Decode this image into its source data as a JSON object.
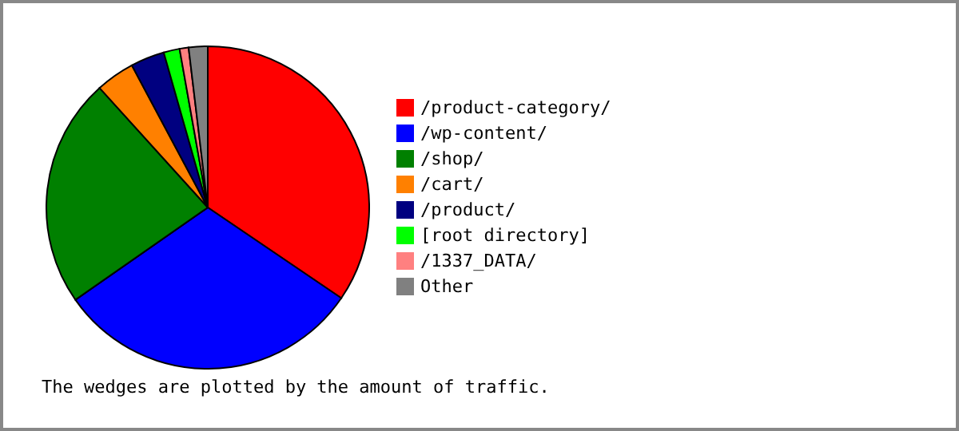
{
  "chart_data": {
    "type": "pie",
    "categories": [
      "/product-category/",
      "/wp-content/",
      "/shop/",
      "/cart/",
      "/product/",
      "[root directory]",
      "/1337_DATA/",
      "Other"
    ],
    "values": [
      34.5,
      30.8,
      23,
      3.9,
      3.4,
      1.6,
      0.9,
      1.9
    ],
    "colors": [
      "#ff0000",
      "#0000ff",
      "#008000",
      "#ff8000",
      "#000080",
      "#00ff00",
      "#ff8080",
      "#808080"
    ],
    "legend": "right",
    "annotations": [
      "The wedges are plotted by the amount of traffic."
    ]
  }
}
